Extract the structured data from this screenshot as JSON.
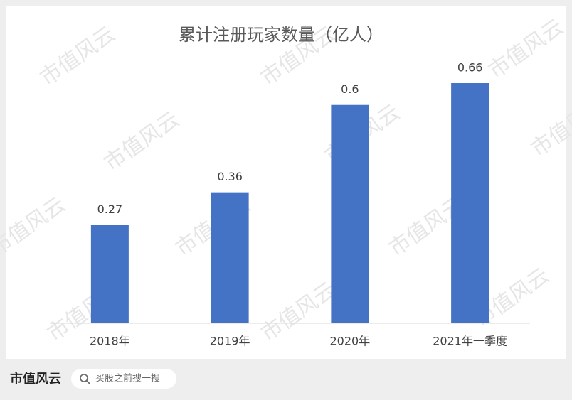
{
  "chart_data": {
    "type": "bar",
    "title": "累计注册玩家数量（亿人）",
    "categories": [
      "2018年",
      "2019年",
      "2020年",
      "2021年一季度"
    ],
    "values": [
      0.27,
      0.36,
      0.6,
      0.66
    ],
    "color": "#4472c4"
  },
  "watermark": "市值风云",
  "footer": {
    "logo": "市值风云",
    "search_placeholder": "买股之前搜一搜"
  }
}
